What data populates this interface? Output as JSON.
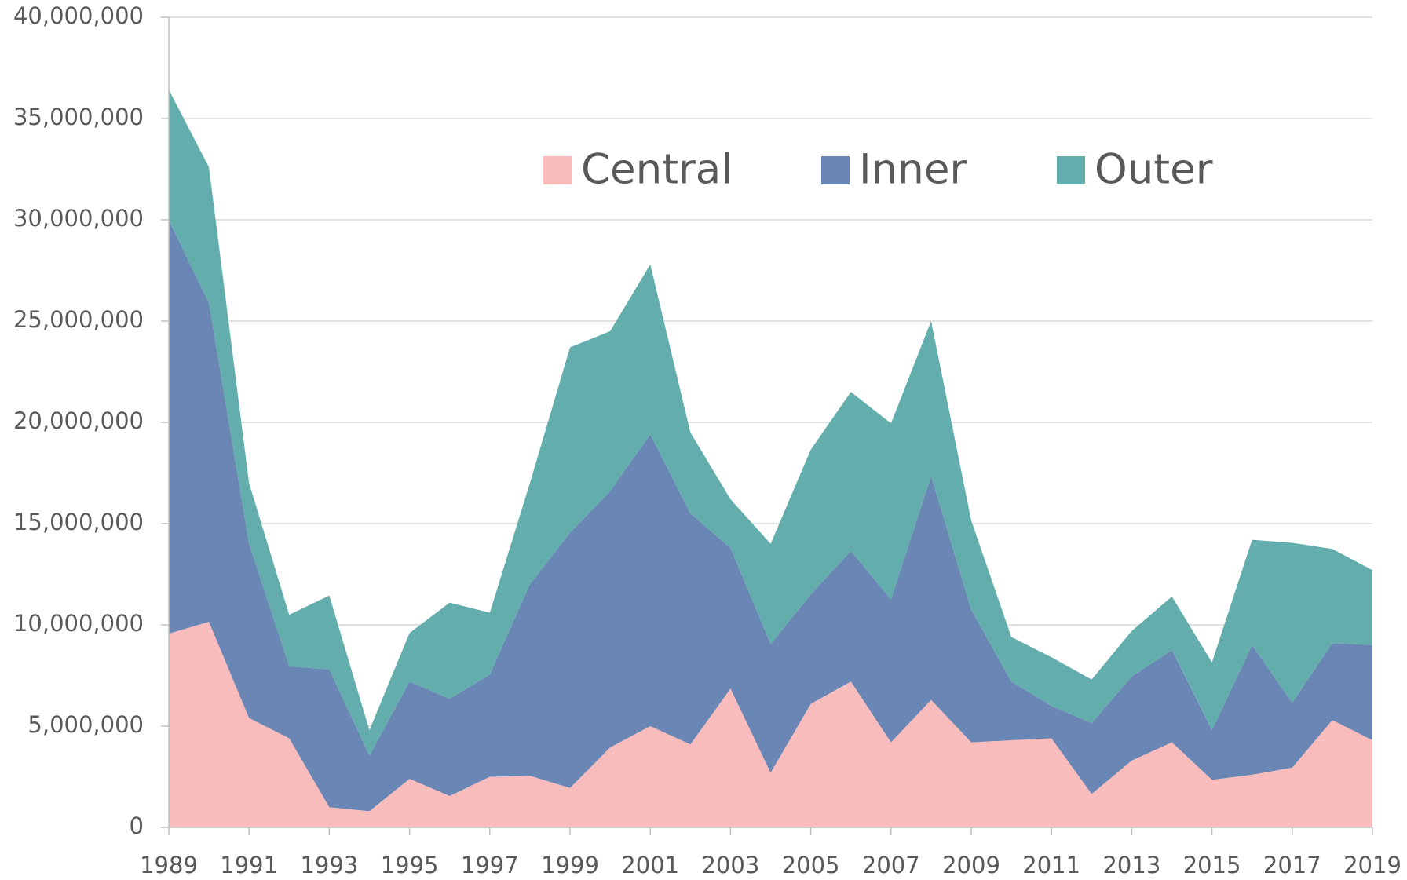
{
  "chart_data": {
    "type": "stacked_area",
    "x": [
      1989,
      1990,
      1991,
      1992,
      1993,
      1994,
      1995,
      1996,
      1997,
      1998,
      1999,
      2000,
      2001,
      2002,
      2003,
      2004,
      2005,
      2006,
      2007,
      2008,
      2009,
      2010,
      2011,
      2012,
      2013,
      2014,
      2015,
      2016,
      2017,
      2018,
      2019
    ],
    "series": [
      {
        "name": "Central",
        "color": "#f8bcbd",
        "values": [
          9570000,
          10150000,
          5400000,
          4400000,
          1000000,
          800000,
          2400000,
          1550000,
          2500000,
          2550000,
          1950000,
          3950000,
          5000000,
          4100000,
          6850000,
          2700000,
          6100000,
          7200000,
          4200000,
          6300000,
          4200000,
          4300000,
          4400000,
          1650000,
          3300000,
          4200000,
          2350000,
          2600000,
          2950000,
          5300000,
          4300000
        ]
      },
      {
        "name": "Inner",
        "color": "#6a86b4",
        "values": [
          20400000,
          15750000,
          8600000,
          3550000,
          6800000,
          2750000,
          4800000,
          4800000,
          5050000,
          9450000,
          12600000,
          12650000,
          14400000,
          11400000,
          6950000,
          6350000,
          5400000,
          6450000,
          7050000,
          11050000,
          6550000,
          2900000,
          1600000,
          3500000,
          4150000,
          4550000,
          2450000,
          6400000,
          3200000,
          3800000,
          4700000
        ]
      },
      {
        "name": "Outer",
        "color": "#64adad",
        "values": [
          6450000,
          6700000,
          3000000,
          2550000,
          3650000,
          1250000,
          2400000,
          4750000,
          3050000,
          5000000,
          9150000,
          7900000,
          8400000,
          4000000,
          2400000,
          4950000,
          7150000,
          7850000,
          8700000,
          7650000,
          4400000,
          2200000,
          2400000,
          2150000,
          2250000,
          2650000,
          3350000,
          5200000,
          7900000,
          4650000,
          3700000
        ]
      }
    ],
    "xlim": [
      1989,
      2019
    ],
    "xticks": [
      1989,
      1991,
      1993,
      1995,
      1997,
      1999,
      2001,
      2003,
      2005,
      2007,
      2009,
      2011,
      2013,
      2015,
      2017,
      2019
    ],
    "ylim": [
      0,
      40000000
    ],
    "yticks": [
      0,
      {
        "value": 5000000,
        "label": "5,000,000"
      },
      {
        "value": 10000000,
        "label": "10,000,000"
      },
      {
        "value": 15000000,
        "label": "15,000,000"
      },
      {
        "value": 20000000,
        "label": "20,000,000"
      },
      {
        "value": 25000000,
        "label": "25,000,000"
      },
      {
        "value": 30000000,
        "label": "30,000,000"
      },
      {
        "value": 35000000,
        "label": "35,000,000"
      },
      {
        "value": 40000000,
        "label": "40,000,000"
      }
    ],
    "grid": true,
    "legend": "top"
  }
}
